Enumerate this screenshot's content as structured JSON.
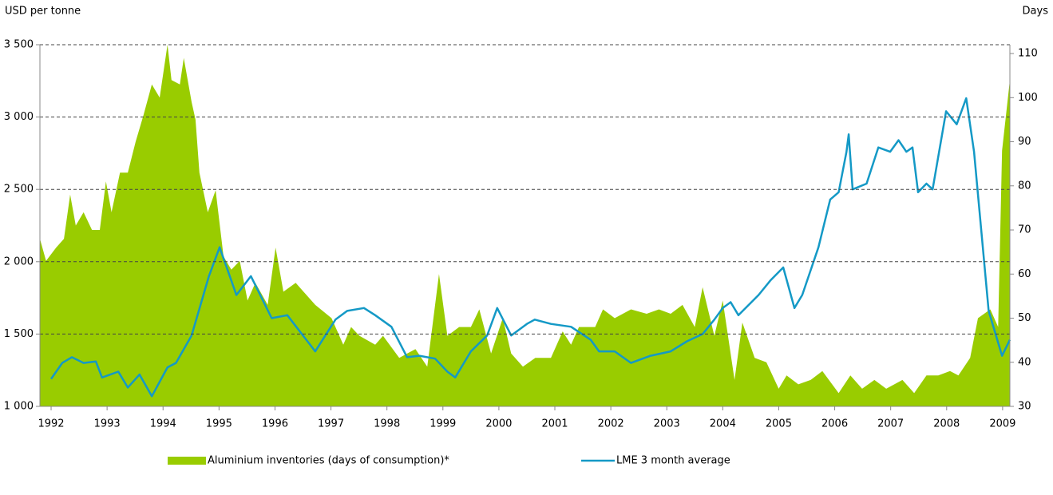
{
  "chart_data": {
    "type": "line",
    "y_label": "USD per tonne",
    "y2_label": "Days",
    "xlim": [
      1991.8,
      2009.13
    ],
    "xticks": [
      1992,
      1993,
      1994,
      1995,
      1996,
      1997,
      1998,
      1999,
      2000,
      2001,
      2002,
      2003,
      2004,
      2005,
      2006,
      2007,
      2008,
      2009
    ],
    "ylim": [
      1000,
      3500
    ],
    "yticks": [
      {
        "value": 1000,
        "label": "1 000"
      },
      {
        "value": 1500,
        "label": "1 500"
      },
      {
        "value": 2000,
        "label": "2 000"
      },
      {
        "value": 2500,
        "label": "2 500"
      },
      {
        "value": 3000,
        "label": "3 000"
      },
      {
        "value": 3500,
        "label": "3 500"
      }
    ],
    "y2lim": [
      30,
      112
    ],
    "y2ticks": [
      30,
      40,
      50,
      60,
      70,
      80,
      90,
      100,
      110
    ],
    "grid": true,
    "legend": "bottom",
    "series": [
      {
        "name": "Aluminium inventories (days of consumption)*",
        "type": "area",
        "axis": "y2",
        "color": "#99cc00",
        "x": [
          1991.8,
          1991.91,
          1992.09,
          1992.23,
          1992.34,
          1992.44,
          1992.58,
          1992.73,
          1992.87,
          1992.98,
          1993.08,
          1993.23,
          1993.37,
          1993.51,
          1993.65,
          1993.8,
          1993.94,
          1994.08,
          1994.15,
          1994.3,
          1994.37,
          1994.51,
          1994.58,
          1994.65,
          1994.8,
          1994.94,
          1995.08,
          1995.22,
          1995.37,
          1995.51,
          1995.65,
          1995.87,
          1996.01,
          1996.15,
          1996.37,
          1996.51,
          1996.72,
          1997.01,
          1997.22,
          1997.36,
          1997.51,
          1997.79,
          1997.93,
          1998.22,
          1998.51,
          1998.72,
          1998.93,
          1999.08,
          1999.29,
          1999.5,
          1999.65,
          1999.86,
          2000.07,
          2000.22,
          2000.43,
          2000.65,
          2000.93,
          2001.14,
          2001.29,
          2001.43,
          2001.72,
          2001.86,
          2002.07,
          2002.36,
          2002.64,
          2002.86,
          2003.07,
          2003.28,
          2003.5,
          2003.64,
          2003.85,
          2004.0,
          2004.21,
          2004.35,
          2004.57,
          2004.78,
          2005.0,
          2005.14,
          2005.35,
          2005.57,
          2005.78,
          2006.07,
          2006.28,
          2006.49,
          2006.71,
          2006.92,
          2007.21,
          2007.42,
          2007.64,
          2007.85,
          2008.06,
          2008.21,
          2008.42,
          2008.56,
          2008.78,
          2008.92,
          2008.99,
          2009.13
        ],
        "values": [
          68,
          63,
          66,
          68,
          78,
          71,
          74,
          70,
          70,
          81,
          74,
          83,
          83,
          90,
          96,
          103,
          100,
          112,
          104,
          103,
          109,
          99,
          95,
          83,
          74,
          79,
          64,
          61,
          63,
          54,
          58,
          53,
          66,
          56,
          58,
          56,
          53,
          50,
          44,
          48,
          46,
          44,
          46,
          41,
          43,
          39,
          60,
          46,
          48,
          48,
          52,
          42,
          50,
          42,
          39,
          41,
          41,
          47,
          44,
          48,
          48,
          52,
          50,
          52,
          51,
          52,
          51,
          53,
          48,
          57,
          46,
          54,
          36,
          49,
          41,
          40,
          34,
          37,
          35,
          36,
          38,
          33,
          37,
          34,
          36,
          34,
          36,
          33,
          37,
          37,
          38,
          37,
          41,
          50,
          52,
          48,
          88,
          104
        ]
      },
      {
        "name": "LME 3 month average",
        "type": "line",
        "color": "#1499c6",
        "x": [
          1992.0,
          1992.2,
          1992.37,
          1992.58,
          1992.8,
          1992.91,
          1993.2,
          1993.37,
          1993.58,
          1993.8,
          1994.08,
          1994.23,
          1994.51,
          1994.82,
          1995.01,
          1995.31,
          1995.57,
          1995.94,
          1996.22,
          1996.72,
          1997.08,
          1997.29,
          1997.59,
          1997.79,
          1998.08,
          1998.36,
          1998.58,
          1998.86,
          1999.08,
          1999.22,
          1999.5,
          1999.79,
          1999.97,
          2000.22,
          2000.5,
          2000.64,
          2000.93,
          2001.29,
          2001.64,
          2001.79,
          2002.07,
          2002.36,
          2002.71,
          2003.07,
          2003.36,
          2003.64,
          2003.85,
          2004.0,
          2004.14,
          2004.28,
          2004.64,
          2004.85,
          2005.08,
          2005.28,
          2005.42,
          2005.71,
          2005.92,
          2006.07,
          2006.21,
          2006.25,
          2006.32,
          2006.57,
          2006.78,
          2006.99,
          2007.14,
          2007.28,
          2007.39,
          2007.49,
          2007.64,
          2007.75,
          2007.99,
          2008.18,
          2008.35,
          2008.49,
          2008.75,
          2008.99,
          2009.13
        ],
        "values": [
          1190,
          1300,
          1340,
          1300,
          1310,
          1200,
          1240,
          1130,
          1220,
          1070,
          1270,
          1300,
          1490,
          1900,
          2100,
          1770,
          1900,
          1610,
          1630,
          1380,
          1600,
          1660,
          1680,
          1630,
          1550,
          1340,
          1350,
          1330,
          1240,
          1200,
          1380,
          1490,
          1680,
          1490,
          1570,
          1600,
          1570,
          1550,
          1460,
          1380,
          1380,
          1300,
          1350,
          1380,
          1450,
          1500,
          1600,
          1680,
          1720,
          1630,
          1770,
          1870,
          1960,
          1680,
          1770,
          2100,
          2430,
          2480,
          2760,
          2880,
          2500,
          2540,
          2790,
          2760,
          2840,
          2760,
          2790,
          2480,
          2540,
          2500,
          3040,
          2950,
          3130,
          2760,
          1660,
          1350,
          1460
        ]
      }
    ]
  }
}
